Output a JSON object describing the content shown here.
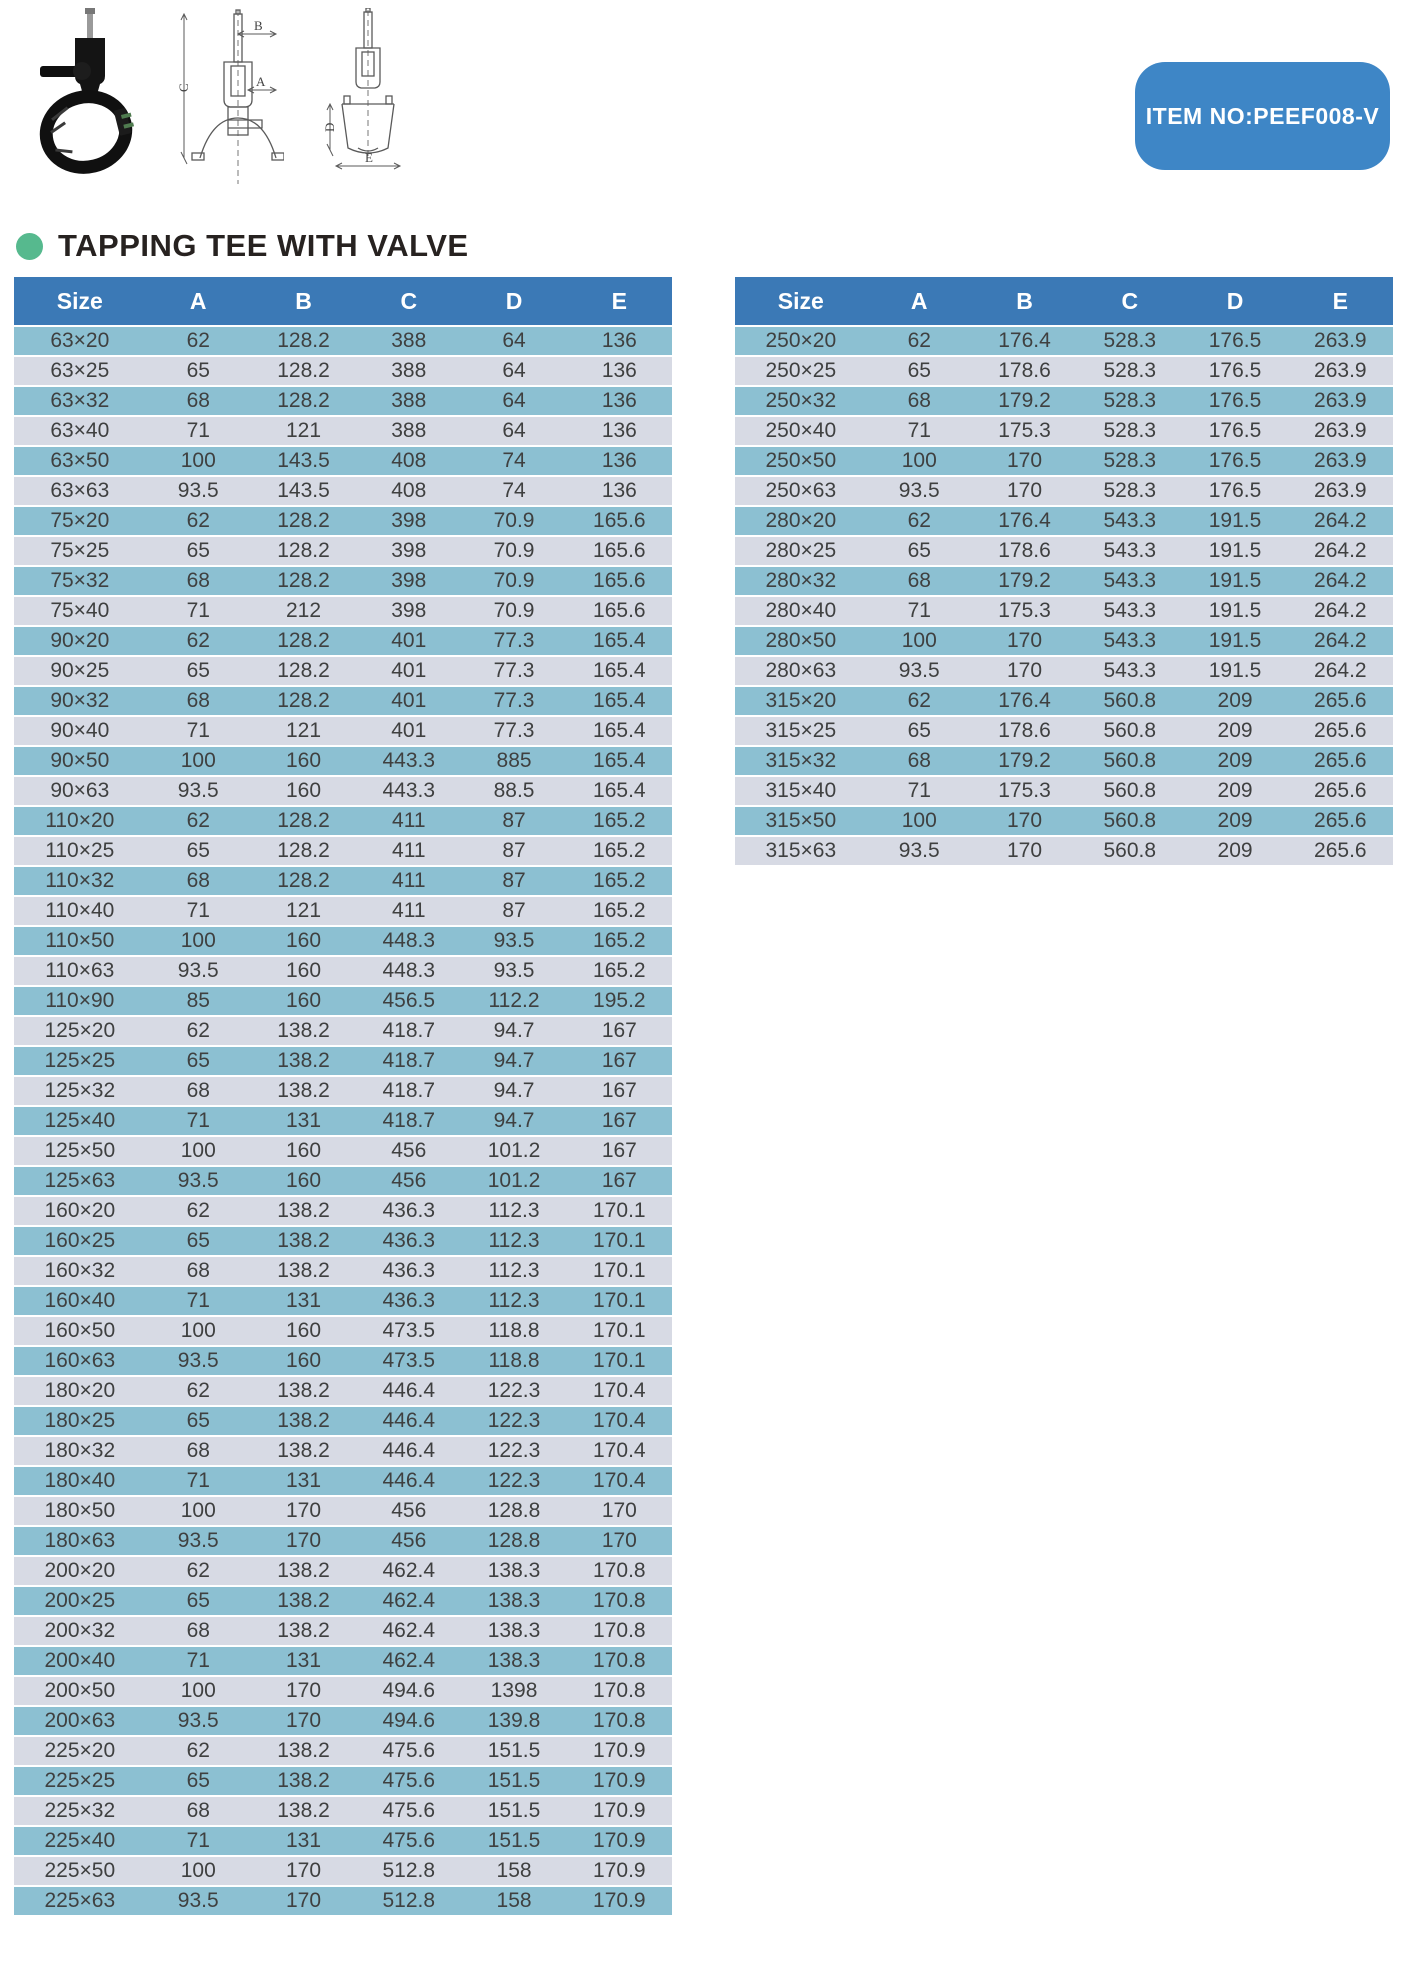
{
  "badge": {
    "label": "ITEM NO:PEEF008-V"
  },
  "title": "TAPPING TEE WITH VALVE",
  "figures": {
    "photo_name": "tapping-tee-product-photo",
    "label_a": "A",
    "label_b": "B",
    "label_c": "C",
    "label_d": "D",
    "label_e": "E"
  },
  "colors": {
    "header_blue": "#3b79b6",
    "row_teal": "#8cc0d2",
    "row_light": "#d7dae4",
    "badge_blue": "#3e86c6",
    "bullet_green": "#56b98e"
  },
  "columns": [
    "Size",
    "A",
    "B",
    "C",
    "D",
    "E"
  ],
  "left_table_rows": [
    [
      "63×20",
      "62",
      "128.2",
      "388",
      "64",
      "136"
    ],
    [
      "63×25",
      "65",
      "128.2",
      "388",
      "64",
      "136"
    ],
    [
      "63×32",
      "68",
      "128.2",
      "388",
      "64",
      "136"
    ],
    [
      "63×40",
      "71",
      "121",
      "388",
      "64",
      "136"
    ],
    [
      "63×50",
      "100",
      "143.5",
      "408",
      "74",
      "136"
    ],
    [
      "63×63",
      "93.5",
      "143.5",
      "408",
      "74",
      "136"
    ],
    [
      "75×20",
      "62",
      "128.2",
      "398",
      "70.9",
      "165.6"
    ],
    [
      "75×25",
      "65",
      "128.2",
      "398",
      "70.9",
      "165.6"
    ],
    [
      "75×32",
      "68",
      "128.2",
      "398",
      "70.9",
      "165.6"
    ],
    [
      "75×40",
      "71",
      "212",
      "398",
      "70.9",
      "165.6"
    ],
    [
      "90×20",
      "62",
      "128.2",
      "401",
      "77.3",
      "165.4"
    ],
    [
      "90×25",
      "65",
      "128.2",
      "401",
      "77.3",
      "165.4"
    ],
    [
      "90×32",
      "68",
      "128.2",
      "401",
      "77.3",
      "165.4"
    ],
    [
      "90×40",
      "71",
      "121",
      "401",
      "77.3",
      "165.4"
    ],
    [
      "90×50",
      "100",
      "160",
      "443.3",
      "885",
      "165.4"
    ],
    [
      "90×63",
      "93.5",
      "160",
      "443.3",
      "88.5",
      "165.4"
    ],
    [
      "110×20",
      "62",
      "128.2",
      "411",
      "87",
      "165.2"
    ],
    [
      "110×25",
      "65",
      "128.2",
      "411",
      "87",
      "165.2"
    ],
    [
      "110×32",
      "68",
      "128.2",
      "411",
      "87",
      "165.2"
    ],
    [
      "110×40",
      "71",
      "121",
      "411",
      "87",
      "165.2"
    ],
    [
      "110×50",
      "100",
      "160",
      "448.3",
      "93.5",
      "165.2"
    ],
    [
      "110×63",
      "93.5",
      "160",
      "448.3",
      "93.5",
      "165.2"
    ],
    [
      "110×90",
      "85",
      "160",
      "456.5",
      "112.2",
      "195.2"
    ],
    [
      "125×20",
      "62",
      "138.2",
      "418.7",
      "94.7",
      "167"
    ],
    [
      "125×25",
      "65",
      "138.2",
      "418.7",
      "94.7",
      "167"
    ],
    [
      "125×32",
      "68",
      "138.2",
      "418.7",
      "94.7",
      "167"
    ],
    [
      "125×40",
      "71",
      "131",
      "418.7",
      "94.7",
      "167"
    ],
    [
      "125×50",
      "100",
      "160",
      "456",
      "101.2",
      "167"
    ],
    [
      "125×63",
      "93.5",
      "160",
      "456",
      "101.2",
      "167"
    ],
    [
      "160×20",
      "62",
      "138.2",
      "436.3",
      "112.3",
      "170.1"
    ],
    [
      "160×25",
      "65",
      "138.2",
      "436.3",
      "112.3",
      "170.1"
    ],
    [
      "160×32",
      "68",
      "138.2",
      "436.3",
      "112.3",
      "170.1"
    ],
    [
      "160×40",
      "71",
      "131",
      "436.3",
      "112.3",
      "170.1"
    ],
    [
      "160×50",
      "100",
      "160",
      "473.5",
      "118.8",
      "170.1"
    ],
    [
      "160×63",
      "93.5",
      "160",
      "473.5",
      "118.8",
      "170.1"
    ],
    [
      "180×20",
      "62",
      "138.2",
      "446.4",
      "122.3",
      "170.4"
    ],
    [
      "180×25",
      "65",
      "138.2",
      "446.4",
      "122.3",
      "170.4"
    ],
    [
      "180×32",
      "68",
      "138.2",
      "446.4",
      "122.3",
      "170.4"
    ],
    [
      "180×40",
      "71",
      "131",
      "446.4",
      "122.3",
      "170.4"
    ],
    [
      "180×50",
      "100",
      "170",
      "456",
      "128.8",
      "170"
    ],
    [
      "180×63",
      "93.5",
      "170",
      "456",
      "128.8",
      "170"
    ],
    [
      "200×20",
      "62",
      "138.2",
      "462.4",
      "138.3",
      "170.8"
    ],
    [
      "200×25",
      "65",
      "138.2",
      "462.4",
      "138.3",
      "170.8"
    ],
    [
      "200×32",
      "68",
      "138.2",
      "462.4",
      "138.3",
      "170.8"
    ],
    [
      "200×40",
      "71",
      "131",
      "462.4",
      "138.3",
      "170.8"
    ],
    [
      "200×50",
      "100",
      "170",
      "494.6",
      "1398",
      "170.8"
    ],
    [
      "200×63",
      "93.5",
      "170",
      "494.6",
      "139.8",
      "170.8"
    ],
    [
      "225×20",
      "62",
      "138.2",
      "475.6",
      "151.5",
      "170.9"
    ],
    [
      "225×25",
      "65",
      "138.2",
      "475.6",
      "151.5",
      "170.9"
    ],
    [
      "225×32",
      "68",
      "138.2",
      "475.6",
      "151.5",
      "170.9"
    ],
    [
      "225×40",
      "71",
      "131",
      "475.6",
      "151.5",
      "170.9"
    ],
    [
      "225×50",
      "100",
      "170",
      "512.8",
      "158",
      "170.9"
    ],
    [
      "225×63",
      "93.5",
      "170",
      "512.8",
      "158",
      "170.9"
    ]
  ],
  "right_table_rows": [
    [
      "250×20",
      "62",
      "176.4",
      "528.3",
      "176.5",
      "263.9"
    ],
    [
      "250×25",
      "65",
      "178.6",
      "528.3",
      "176.5",
      "263.9"
    ],
    [
      "250×32",
      "68",
      "179.2",
      "528.3",
      "176.5",
      "263.9"
    ],
    [
      "250×40",
      "71",
      "175.3",
      "528.3",
      "176.5",
      "263.9"
    ],
    [
      "250×50",
      "100",
      "170",
      "528.3",
      "176.5",
      "263.9"
    ],
    [
      "250×63",
      "93.5",
      "170",
      "528.3",
      "176.5",
      "263.9"
    ],
    [
      "280×20",
      "62",
      "176.4",
      "543.3",
      "191.5",
      "264.2"
    ],
    [
      "280×25",
      "65",
      "178.6",
      "543.3",
      "191.5",
      "264.2"
    ],
    [
      "280×32",
      "68",
      "179.2",
      "543.3",
      "191.5",
      "264.2"
    ],
    [
      "280×40",
      "71",
      "175.3",
      "543.3",
      "191.5",
      "264.2"
    ],
    [
      "280×50",
      "100",
      "170",
      "543.3",
      "191.5",
      "264.2"
    ],
    [
      "280×63",
      "93.5",
      "170",
      "543.3",
      "191.5",
      "264.2"
    ],
    [
      "315×20",
      "62",
      "176.4",
      "560.8",
      "209",
      "265.6"
    ],
    [
      "315×25",
      "65",
      "178.6",
      "560.8",
      "209",
      "265.6"
    ],
    [
      "315×32",
      "68",
      "179.2",
      "560.8",
      "209",
      "265.6"
    ],
    [
      "315×40",
      "71",
      "175.3",
      "560.8",
      "209",
      "265.6"
    ],
    [
      "315×50",
      "100",
      "170",
      "560.8",
      "209",
      "265.6"
    ],
    [
      "315×63",
      "93.5",
      "170",
      "560.8",
      "209",
      "265.6"
    ]
  ]
}
